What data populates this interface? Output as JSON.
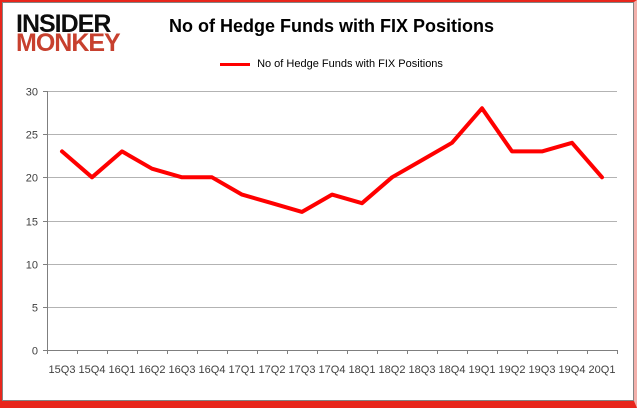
{
  "logo": {
    "line1": "INSIDER",
    "line2": "MONKEY"
  },
  "header": {
    "title": "No of Hedge Funds with FIX Positions"
  },
  "legend": {
    "label": "No of Hedge Funds with FIX Positions"
  },
  "chart_data": {
    "type": "line",
    "title": "No of Hedge Funds with FIX Positions",
    "series_name": "No of Hedge Funds with FIX Positions",
    "categories": [
      "15Q3",
      "15Q4",
      "16Q1",
      "16Q2",
      "16Q3",
      "16Q4",
      "17Q1",
      "17Q2",
      "17Q3",
      "17Q4",
      "18Q1",
      "18Q2",
      "18Q3",
      "18Q4",
      "19Q1",
      "19Q2",
      "19Q3",
      "19Q4",
      "20Q1"
    ],
    "values": [
      23,
      20,
      23,
      21,
      20,
      20,
      18,
      17,
      16,
      18,
      17,
      20,
      22,
      24,
      28,
      23,
      23,
      24,
      20
    ],
    "ylim": [
      0,
      30
    ],
    "yticks": [
      0,
      5,
      10,
      15,
      20,
      25,
      30
    ],
    "grid": true,
    "legend_position": "top-center",
    "line_color": "#ff0000"
  },
  "colors": {
    "line": "#ff0000",
    "logo_black": "#0d0d0d",
    "logo_red": "#c7402e",
    "grid": "#b3b3b3",
    "axis": "#7f7f7f",
    "tick_label": "#404040",
    "frame_red": "#e8261c",
    "chart_border": "#848484"
  }
}
